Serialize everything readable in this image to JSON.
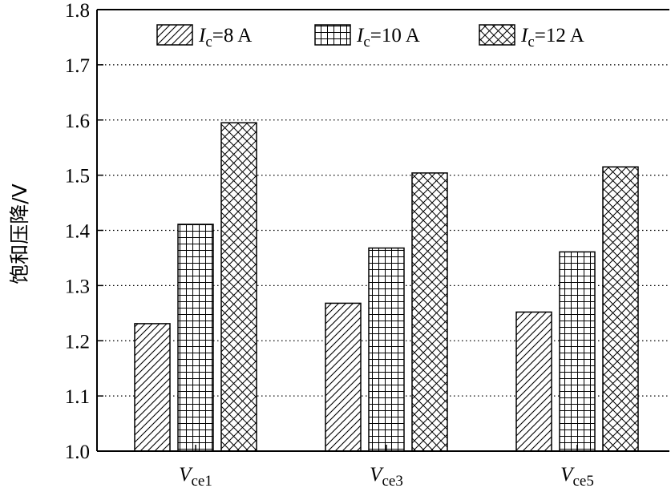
{
  "chart_data": {
    "type": "bar",
    "ylabel": "饱和压降/V",
    "ylim": [
      1.0,
      1.8
    ],
    "yticks": [
      "1.0",
      "1.1",
      "1.2",
      "1.3",
      "1.4",
      "1.5",
      "1.6",
      "1.7",
      "1.8"
    ],
    "grid": "horizontal dotted",
    "legend_position": "top",
    "categories": [
      {
        "main": "V",
        "sub": "ce1"
      },
      {
        "main": "V",
        "sub": "ce3"
      },
      {
        "main": "V",
        "sub": "ce5"
      }
    ],
    "series": [
      {
        "name": "Ic=8 A",
        "label_main": "I",
        "label_sub": "c",
        "label_rest": "=8 A",
        "pattern": "diagonal-hatch",
        "values": [
          1.231,
          1.268,
          1.252
        ]
      },
      {
        "name": "Ic=10 A",
        "label_main": "I",
        "label_sub": "c",
        "label_rest": "=10 A",
        "pattern": "grid",
        "values": [
          1.411,
          1.368,
          1.361
        ]
      },
      {
        "name": "Ic=12 A",
        "label_main": "I",
        "label_sub": "c",
        "label_rest": "=12 A",
        "pattern": "crosshatch",
        "values": [
          1.595,
          1.504,
          1.515
        ]
      }
    ]
  }
}
